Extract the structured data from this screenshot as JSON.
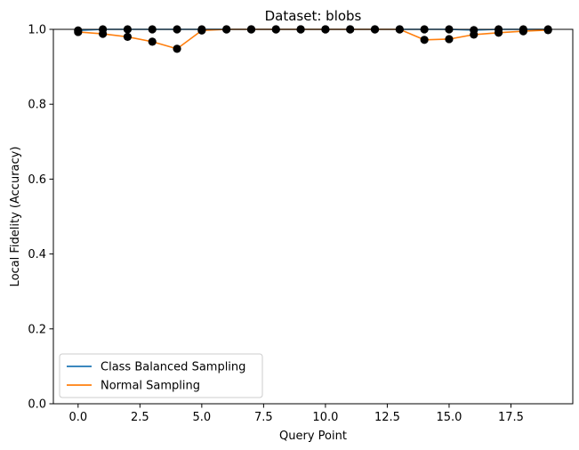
{
  "chart_data": {
    "type": "line",
    "title": "Dataset: blobs",
    "xlabel": "Query Point",
    "ylabel": "Local Fidelity (Accuracy)",
    "xlim": [
      -1.0,
      20.0
    ],
    "ylim": [
      0.0,
      1.0
    ],
    "xticks": [
      0.0,
      2.5,
      5.0,
      7.5,
      10.0,
      12.5,
      15.0,
      17.5
    ],
    "xtick_labels": [
      "0.0",
      "2.5",
      "5.0",
      "7.5",
      "10.0",
      "12.5",
      "15.0",
      "17.5"
    ],
    "yticks": [
      0.0,
      0.2,
      0.4,
      0.6,
      0.8,
      1.0
    ],
    "ytick_labels": [
      "0.0",
      "0.2",
      "0.4",
      "0.6",
      "0.8",
      "1.0"
    ],
    "grid": false,
    "legend_position": "lower-left",
    "x": [
      0,
      1,
      2,
      3,
      4,
      5,
      6,
      7,
      8,
      9,
      10,
      11,
      12,
      13,
      14,
      15,
      16,
      17,
      18,
      19
    ],
    "series": [
      {
        "name": "Class Balanced Sampling",
        "color": "#1f77b4",
        "marker_color": "#000000",
        "values": [
          0.997,
          1.0,
          1.0,
          1.0,
          1.0,
          1.0,
          1.0,
          1.0,
          1.0,
          1.0,
          1.0,
          1.0,
          1.0,
          1.0,
          1.0,
          1.0,
          0.998,
          1.0,
          1.0,
          1.0
        ]
      },
      {
        "name": "Normal Sampling",
        "color": "#ff7f0e",
        "marker_color": "#000000",
        "values": [
          0.993,
          0.988,
          0.98,
          0.967,
          0.948,
          0.997,
          1.0,
          1.0,
          1.0,
          1.0,
          1.0,
          1.0,
          1.0,
          1.0,
          0.972,
          0.974,
          0.986,
          0.991,
          0.995,
          0.998
        ]
      }
    ]
  }
}
